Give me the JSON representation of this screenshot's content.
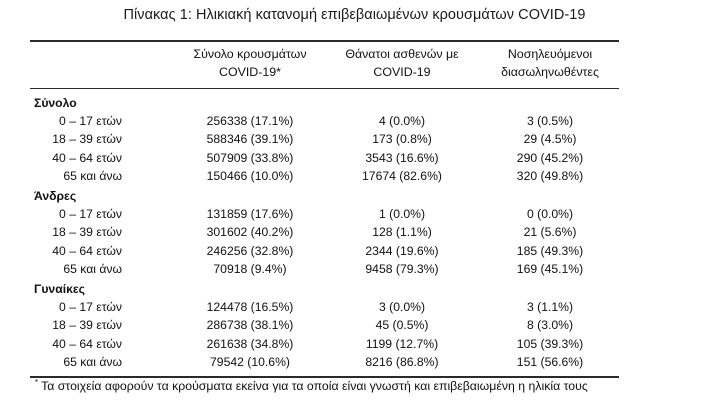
{
  "title": "Πίνακας 1: Ηλικιακή κατανομή επιβεβαιωμένων κρουσμάτων COVID-19",
  "columns": [
    {
      "line1": "Σύνολο κρουσμάτων",
      "line2": "COVID-19*"
    },
    {
      "line1": "Θάνατοι ασθενών με",
      "line2": "COVID-19"
    },
    {
      "line1": "Νοσηλευόμενοι",
      "line2": "διασωληνωθέντες"
    }
  ],
  "groups": [
    {
      "label": "Σύνολο",
      "rows": [
        {
          "age": "0 – 17 ετών",
          "cases": "256338 (17.1%)",
          "deaths": "4 (0.0%)",
          "intubated": "3 (0.5%)"
        },
        {
          "age": "18 – 39 ετών",
          "cases": "588346 (39.1%)",
          "deaths": "173 (0.8%)",
          "intubated": "29 (4.5%)"
        },
        {
          "age": "40 – 64 ετών",
          "cases": "507909 (33.8%)",
          "deaths": "3543 (16.6%)",
          "intubated": "290 (45.2%)"
        },
        {
          "age": "65 και άνω",
          "cases": "150466 (10.0%)",
          "deaths": "17674 (82.6%)",
          "intubated": "320 (49.8%)"
        }
      ]
    },
    {
      "label": "Άνδρες",
      "rows": [
        {
          "age": "0 – 17 ετών",
          "cases": "131859 (17.6%)",
          "deaths": "1 (0.0%)",
          "intubated": "0 (0.0%)"
        },
        {
          "age": "18 – 39 ετών",
          "cases": "301602 (40.2%)",
          "deaths": "128 (1.1%)",
          "intubated": "21 (5.6%)"
        },
        {
          "age": "40 – 64 ετών",
          "cases": "246256 (32.8%)",
          "deaths": "2344 (19.6%)",
          "intubated": "185 (49.3%)"
        },
        {
          "age": "65 και άνω",
          "cases": "70918 (9.4%)",
          "deaths": "9458 (79.3%)",
          "intubated": "169 (45.1%)"
        }
      ]
    },
    {
      "label": "Γυναίκες",
      "rows": [
        {
          "age": "0 – 17 ετών",
          "cases": "124478 (16.5%)",
          "deaths": "3 (0.0%)",
          "intubated": "3 (1.1%)"
        },
        {
          "age": "18 – 39 ετών",
          "cases": "286738 (38.1%)",
          "deaths": "45 (0.5%)",
          "intubated": "8 (3.0%)"
        },
        {
          "age": "40 – 64 ετών",
          "cases": "261638 (34.8%)",
          "deaths": "1199 (12.7%)",
          "intubated": "105 (39.3%)"
        },
        {
          "age": "65 και άνω",
          "cases": "79542 (10.6%)",
          "deaths": "8216 (86.8%)",
          "intubated": "151 (56.6%)"
        }
      ]
    }
  ],
  "footnote": {
    "marker": "*",
    "text": "Τα στοιχεία αφορούν τα κρούσματα εκείνα για τα οποία είναι γνωστή και επιβεβαιωμένη η ηλικία τους"
  }
}
